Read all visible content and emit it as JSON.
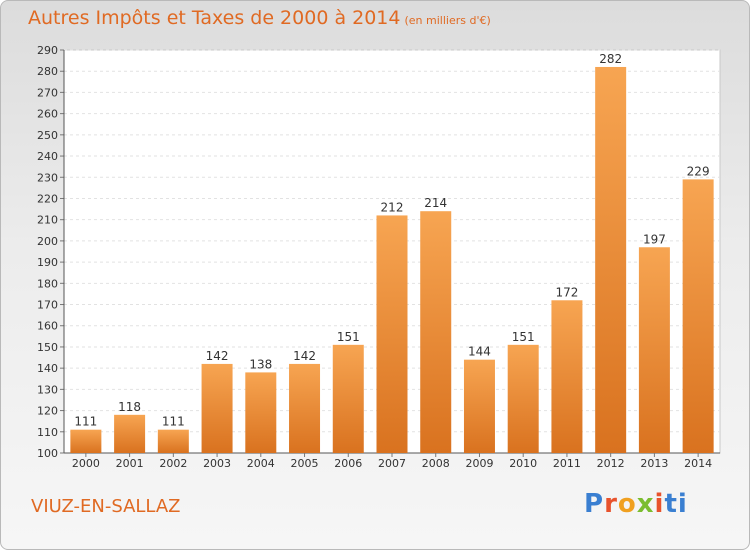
{
  "header": {
    "title": "Autres Impôts et Taxes de 2000 à 2014",
    "unit": "(en milliers d'€)"
  },
  "commune": "VIUZ-EN-SALLAZ",
  "logo": {
    "letters": [
      "P",
      "r",
      "o",
      "x",
      "i",
      "t",
      "i"
    ]
  },
  "colors": {
    "bar_light": "#f7a552",
    "bar_dark": "#d9721f",
    "title": "#e06a23"
  },
  "chart_data": {
    "type": "bar",
    "title": "Autres Impôts et Taxes de 2000 à 2014",
    "subtitle": "(en milliers d'€)",
    "xlabel": "",
    "ylabel": "",
    "categories": [
      "2000",
      "2001",
      "2002",
      "2003",
      "2004",
      "2005",
      "2006",
      "2007",
      "2008",
      "2009",
      "2010",
      "2011",
      "2012",
      "2013",
      "2014"
    ],
    "values": [
      111,
      118,
      111,
      142,
      138,
      142,
      151,
      212,
      214,
      144,
      151,
      172,
      282,
      197,
      229
    ],
    "ylim": [
      100,
      290
    ],
    "yticks": [
      100,
      110,
      120,
      130,
      140,
      150,
      160,
      170,
      180,
      190,
      200,
      210,
      220,
      230,
      240,
      250,
      260,
      270,
      280,
      290
    ],
    "grid": true
  }
}
